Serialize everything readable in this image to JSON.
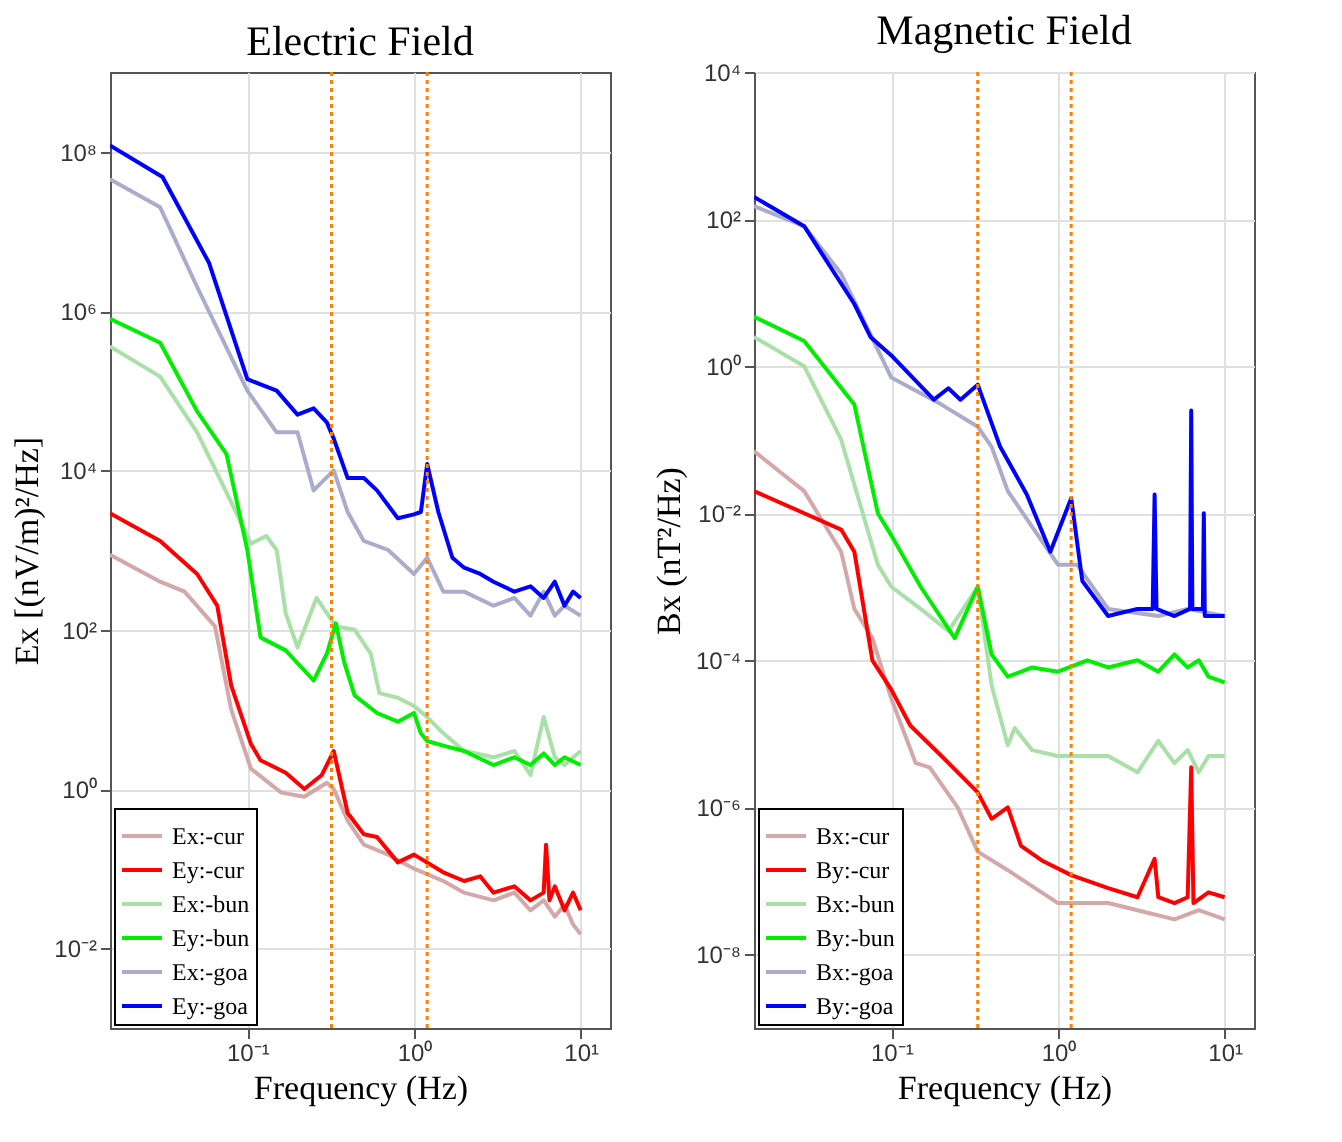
{
  "chart_data": [
    {
      "type": "line",
      "title": "Electric Field",
      "xlabel": "Frequency (Hz)",
      "ylabel": "Ex [(nV/m)²/Hz]",
      "log": "xy",
      "grid": true,
      "legend": "bottom left",
      "line_style": "solid",
      "xlim": [
        0.015,
        15
      ],
      "xticks": [
        {
          "value": 0.1,
          "label": "10⁻¹"
        },
        {
          "value": 1,
          "label": "10⁰"
        },
        {
          "value": 10,
          "label": "10¹"
        }
      ],
      "ylim": [
        0.001,
        1000000000
      ],
      "yticks": [
        {
          "value": 0.01,
          "label": "10⁻²"
        },
        {
          "value": 1,
          "label": "10⁰"
        },
        {
          "value": 100,
          "label": "10²"
        },
        {
          "value": 10000,
          "label": "10⁴"
        },
        {
          "value": 1000000,
          "label": "10⁶"
        },
        {
          "value": 100000000,
          "label": "10⁸"
        }
      ],
      "ref_lines": [
        {
          "axis": "x",
          "value": 0.32,
          "color": "#ff8000",
          "line_style": "dotted"
        },
        {
          "axis": "x",
          "value": 1.2,
          "color": "#ff8000",
          "line_style": "dotted"
        }
      ],
      "series": [
        {
          "name": "Ex:-cur",
          "color": "#d4a8a8",
          "x": [
            0.015,
            0.03,
            0.042,
            0.064,
            0.08,
            0.105,
            0.16,
            0.22,
            0.3,
            0.33,
            0.4,
            0.5,
            0.7,
            1,
            1.5,
            2,
            3,
            4,
            5,
            6,
            7,
            8,
            9,
            10
          ],
          "values": [
            870,
            400,
            300,
            110,
            10,
            1.8,
            0.9,
            0.8,
            1.2,
            1,
            0.4,
            0.2,
            0.15,
            0.1,
            0.07,
            0.05,
            0.04,
            0.05,
            0.03,
            0.04,
            0.025,
            0.035,
            0.02,
            0.015
          ]
        },
        {
          "name": "Ey:-cur",
          "color": "#ff0000",
          "x": [
            0.015,
            0.03,
            0.05,
            0.066,
            0.08,
            0.105,
            0.12,
            0.17,
            0.22,
            0.28,
            0.33,
            0.4,
            0.5,
            0.6,
            0.8,
            1,
            1.5,
            2,
            2.5,
            3,
            4,
            5,
            6,
            6.2,
            6.5,
            7,
            8,
            9,
            10
          ],
          "values": [
            2900,
            1300,
            500,
            200,
            20,
            3.7,
            2.3,
            1.6,
            1,
            1.5,
            3,
            0.5,
            0.27,
            0.25,
            0.12,
            0.15,
            0.09,
            0.07,
            0.08,
            0.05,
            0.06,
            0.04,
            0.05,
            0.2,
            0.04,
            0.06,
            0.03,
            0.05,
            0.03
          ]
        },
        {
          "name": "Ex:-bun",
          "color": "#a8e0a8",
          "x": [
            0.015,
            0.03,
            0.05,
            0.08,
            0.105,
            0.13,
            0.15,
            0.17,
            0.2,
            0.26,
            0.34,
            0.44,
            0.55,
            0.62,
            0.8,
            1,
            1.2,
            1.5,
            2,
            3,
            4,
            5,
            6,
            7,
            8,
            10
          ],
          "values": [
            360000,
            150000,
            30000,
            4000,
            1200,
            1500,
            1000,
            160,
            60,
            250,
            110,
            100,
            50,
            16,
            14,
            11,
            8,
            5,
            3,
            2.5,
            3,
            1.5,
            8,
            2.5,
            2,
            3
          ]
        },
        {
          "name": "Ey:-bun",
          "color": "#00ee00",
          "x": [
            0.015,
            0.03,
            0.05,
            0.075,
            0.1,
            0.12,
            0.17,
            0.25,
            0.3,
            0.34,
            0.38,
            0.44,
            0.6,
            0.8,
            1,
            1.1,
            1.2,
            1.5,
            2,
            3,
            4,
            5,
            6,
            7,
            8,
            10
          ],
          "values": [
            800000,
            400000,
            55000,
            16000,
            1000,
            80,
            55,
            23,
            50,
            120,
            40,
            15,
            9,
            7,
            9,
            5,
            4,
            3.5,
            3,
            2,
            2.5,
            2,
            2.8,
            2,
            2.5,
            2
          ]
        },
        {
          "name": "Ex:-goa",
          "color": "#ababcc",
          "x": [
            0.015,
            0.03,
            0.05,
            0.1,
            0.15,
            0.2,
            0.25,
            0.33,
            0.4,
            0.5,
            0.7,
            1,
            1.2,
            1.5,
            2,
            3,
            4,
            5,
            6,
            7,
            8,
            10
          ],
          "values": [
            45000000,
            20000000,
            2000000,
            100000,
            30000,
            30000,
            5600,
            10000,
            3000,
            1300,
            1000,
            500,
            800,
            300,
            300,
            200,
            250,
            150,
            300,
            150,
            200,
            150
          ]
        },
        {
          "name": "Ey:-goa",
          "color": "#0000ff",
          "x": [
            0.015,
            0.031,
            0.059,
            0.1,
            0.12,
            0.15,
            0.2,
            0.25,
            0.3,
            0.33,
            0.4,
            0.5,
            0.6,
            0.8,
            1,
            1.1,
            1.2,
            1.4,
            1.7,
            2,
            2.5,
            3,
            4,
            5,
            6,
            7,
            8,
            9,
            10
          ],
          "values": [
            120000000,
            48000000,
            4000000,
            140000,
            120000,
            100000,
            50000,
            60000,
            40000,
            25000,
            8000,
            8000,
            5600,
            2500,
            2800,
            3000,
            12000,
            3000,
            800,
            600,
            500,
            400,
            300,
            350,
            250,
            400,
            200,
            300,
            250
          ]
        }
      ]
    },
    {
      "type": "line",
      "title": "Magnetic Field",
      "xlabel": "Frequency (Hz)",
      "ylabel": "Bx (nT²/Hz)",
      "log": "xy",
      "grid": true,
      "legend": "bottom left",
      "line_style": "solid",
      "xlim": [
        0.015,
        15
      ],
      "xticks": [
        {
          "value": 0.1,
          "label": "10⁻¹"
        },
        {
          "value": 1,
          "label": "10⁰"
        },
        {
          "value": 10,
          "label": "10¹"
        }
      ],
      "ylim": [
        1e-09,
        10000
      ],
      "yticks": [
        {
          "value": 1e-08,
          "label": "10⁻⁸"
        },
        {
          "value": 1e-06,
          "label": "10⁻⁶"
        },
        {
          "value": 0.0001,
          "label": "10⁻⁴"
        },
        {
          "value": 0.01,
          "label": "10⁻²"
        },
        {
          "value": 1,
          "label": "10⁰"
        },
        {
          "value": 100,
          "label": "10²"
        },
        {
          "value": 10000,
          "label": "10⁴"
        }
      ],
      "ref_lines": [
        {
          "axis": "x",
          "value": 0.33,
          "color": "#ff8000",
          "line_style": "dotted"
        },
        {
          "axis": "x",
          "value": 1.2,
          "color": "#ff8000",
          "line_style": "dotted"
        }
      ],
      "series": [
        {
          "name": "Bx:-cur",
          "color": "#d4a8a8",
          "x": [
            0.015,
            0.03,
            0.05,
            0.06,
            0.077,
            0.1,
            0.14,
            0.17,
            0.25,
            0.33,
            0.5,
            1,
            2,
            3,
            5,
            7,
            10
          ],
          "values": [
            0.07,
            0.02,
            0.003,
            0.0005,
            0.0002,
            3e-05,
            4e-06,
            3.5e-06,
            1e-06,
            2.5e-07,
            1.4e-07,
            5e-08,
            5e-08,
            4e-08,
            3e-08,
            4e-08,
            3e-08
          ]
        },
        {
          "name": "By:-cur",
          "color": "#ff0000",
          "x": [
            0.015,
            0.03,
            0.05,
            0.06,
            0.077,
            0.1,
            0.13,
            0.2,
            0.33,
            0.4,
            0.5,
            0.6,
            0.8,
            1.2,
            2,
            3,
            3.8,
            4,
            5,
            6,
            6.3,
            6.5,
            8,
            10
          ],
          "values": [
            0.02,
            0.01,
            0.006,
            0.003,
            0.0001,
            4e-05,
            1.3e-05,
            5e-06,
            1.6e-06,
            7e-07,
            1e-06,
            3e-07,
            1.9e-07,
            1.2e-07,
            8e-08,
            6e-08,
            2e-07,
            6e-08,
            5e-08,
            6e-08,
            3.5e-06,
            5e-08,
            7e-08,
            6e-08
          ]
        },
        {
          "name": "Bx:-bun",
          "color": "#a8e0a8",
          "x": [
            0.015,
            0.03,
            0.05,
            0.083,
            0.1,
            0.15,
            0.22,
            0.33,
            0.4,
            0.5,
            0.55,
            0.7,
            1,
            2,
            3,
            4,
            5,
            6,
            7,
            8,
            10
          ],
          "values": [
            2.5,
            1,
            0.1,
            0.002,
            0.001,
            0.0005,
            0.00025,
            0.001,
            4.5e-05,
            7e-06,
            1.2e-05,
            6e-06,
            5e-06,
            5e-06,
            3e-06,
            8e-06,
            4e-06,
            6e-06,
            3e-06,
            5e-06,
            5e-06
          ]
        },
        {
          "name": "By:-bun",
          "color": "#00ee00",
          "x": [
            0.015,
            0.03,
            0.06,
            0.083,
            0.1,
            0.15,
            0.24,
            0.33,
            0.4,
            0.5,
            0.7,
            1,
            1.5,
            2,
            3,
            4,
            5,
            6,
            7,
            8,
            10
          ],
          "values": [
            4.7,
            2.2,
            0.3,
            0.01,
            0.005,
            0.001,
            0.0002,
            0.001,
            0.00012,
            6e-05,
            8e-05,
            7e-05,
            0.0001,
            8e-05,
            0.0001,
            7e-05,
            0.00012,
            8e-05,
            0.0001,
            6e-05,
            5e-05
          ]
        },
        {
          "name": "Bx:-goa",
          "color": "#ababcc",
          "x": [
            0.015,
            0.03,
            0.05,
            0.1,
            0.2,
            0.33,
            0.4,
            0.5,
            1,
            1.3,
            2,
            4,
            6,
            10
          ],
          "values": [
            150,
            80,
            18,
            0.7,
            0.3,
            0.15,
            0.08,
            0.02,
            0.002,
            0.002,
            0.0005,
            0.0004,
            0.0005,
            0.0004
          ]
        },
        {
          "name": "By:-goa",
          "color": "#0000ff",
          "x": [
            0.015,
            0.03,
            0.06,
            0.075,
            0.1,
            0.18,
            0.22,
            0.26,
            0.33,
            0.45,
            0.65,
            0.9,
            1.2,
            1.4,
            2,
            3,
            3.7,
            3.8,
            3.9,
            5,
            6.2,
            6.3,
            6.4,
            7.4,
            7.5,
            7.6,
            10
          ],
          "values": [
            200,
            80,
            7,
            2.5,
            1.4,
            0.35,
            0.5,
            0.35,
            0.56,
            0.08,
            0.018,
            0.003,
            0.016,
            0.0012,
            0.0004,
            0.0005,
            0.0005,
            0.018,
            0.0005,
            0.0004,
            0.0005,
            0.25,
            0.0005,
            0.0005,
            0.01,
            0.0004,
            0.0004
          ]
        }
      ]
    }
  ]
}
